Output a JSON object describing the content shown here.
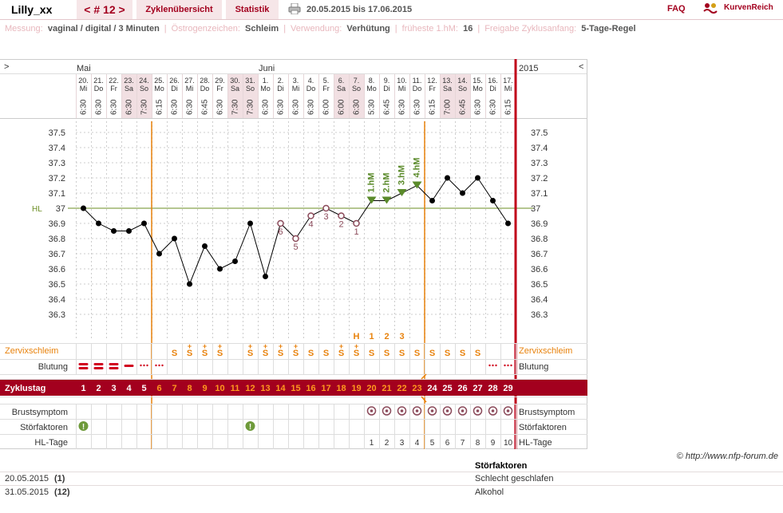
{
  "header": {
    "user": "Lilly_xx",
    "cycle_nav": "< # 12 >",
    "tabs": [
      "Zyklenübersicht",
      "Statistik"
    ],
    "date_range": "20.05.2015 bis 17.06.2015",
    "faq": "FAQ",
    "brand": "KurvenReich",
    "printer_icon": "printer-icon",
    "brand_icon": "kurvenreich-logo-icon"
  },
  "settings": [
    {
      "key": "Messung:",
      "value": "vaginal / digital / 3 Minuten"
    },
    {
      "key": "Östrogenzeichen:",
      "value": "Schleim"
    },
    {
      "key": "Verwendung:",
      "value": "Verhütung"
    },
    {
      "key": "früheste 1.hM:",
      "value": "16"
    },
    {
      "key": "Freigabe Zyklusanfang:",
      "value": "5-Tage-Regel"
    }
  ],
  "chart_data": {
    "type": "line",
    "nav_left": ">",
    "nav_right": "<",
    "year": "2015",
    "months": [
      {
        "label": "Mai",
        "col": 0
      },
      {
        "label": "Juni",
        "col": 12
      }
    ],
    "days": [
      "20.",
      "21.",
      "22.",
      "23.",
      "24.",
      "25.",
      "26.",
      "27.",
      "28.",
      "29.",
      "30.",
      "31.",
      "1.",
      "2.",
      "3.",
      "4.",
      "5.",
      "6.",
      "7.",
      "8.",
      "9.",
      "10.",
      "11.",
      "12.",
      "13.",
      "14.",
      "15.",
      "16.",
      "17."
    ],
    "weekdays": [
      "Mi",
      "Do",
      "Fr",
      "Sa",
      "So",
      "Mo",
      "Di",
      "Mi",
      "Do",
      "Fr",
      "Sa",
      "So",
      "Mo",
      "Di",
      "Mi",
      "Do",
      "Fr",
      "Sa",
      "So",
      "Mo",
      "Di",
      "Mi",
      "Do",
      "Fr",
      "Sa",
      "So",
      "Mo",
      "Di",
      "Mi"
    ],
    "weekend": [
      false,
      false,
      false,
      true,
      true,
      false,
      false,
      false,
      false,
      false,
      true,
      true,
      false,
      false,
      false,
      false,
      false,
      true,
      true,
      false,
      false,
      false,
      false,
      false,
      true,
      true,
      false,
      false,
      false
    ],
    "times": [
      "6:30",
      "6:30",
      "6:30",
      "6:30",
      "7:30",
      "6:15",
      "6:30",
      "6:30",
      "6:45",
      "6:30",
      "7:30",
      "7:30",
      "6:30",
      "6:30",
      "6:30",
      "6:30",
      "6:00",
      "6:00",
      "6:30",
      "5:30",
      "6:45",
      "6:30",
      "6:30",
      "6:15",
      "7:00",
      "6:45",
      "6:30",
      "6:30",
      "6:15"
    ],
    "ylim": [
      36.3,
      37.5
    ],
    "yticks": [
      "37.5",
      "37.4",
      "37.3",
      "37.2",
      "37.1",
      "37",
      "36.9",
      "36.8",
      "36.7",
      "36.6",
      "36.5",
      "36.4",
      "36.3"
    ],
    "hl_label": "HL",
    "coverline": 37.0,
    "temperatures": [
      37.0,
      36.9,
      36.85,
      36.85,
      36.9,
      36.7,
      36.8,
      36.5,
      36.75,
      36.6,
      36.65,
      36.9,
      36.55,
      36.9,
      36.8,
      36.95,
      37.0,
      36.95,
      36.9,
      37.05,
      37.05,
      37.1,
      37.15,
      37.05,
      37.2,
      37.1,
      37.2,
      37.05,
      36.9
    ],
    "lower_six_labels": [
      {
        "day": 13,
        "label": "6"
      },
      {
        "day": 14,
        "label": "5"
      },
      {
        "day": 15,
        "label": "4"
      },
      {
        "day": 16,
        "label": "3"
      },
      {
        "day": 17,
        "label": "2"
      },
      {
        "day": 18,
        "label": "1"
      }
    ],
    "higher_labels": [
      {
        "day": 19,
        "label": "1.hM"
      },
      {
        "day": 20,
        "label": "2.hM"
      },
      {
        "day": 21,
        "label": "3.hM"
      },
      {
        "day": 22,
        "label": "4.hM"
      }
    ],
    "vertical_markers": [
      4.5,
      22.5
    ],
    "mucus_peak_labels": [
      {
        "day": 18,
        "label": "H"
      },
      {
        "day": 19,
        "label": "1"
      },
      {
        "day": 20,
        "label": "2"
      },
      {
        "day": 21,
        "label": "3"
      }
    ],
    "mucus_label": "Zervixschleim",
    "mucus": [
      "",
      "",
      "",
      "",
      "",
      "",
      "S",
      "S+",
      "S+",
      "S+",
      "",
      "S+",
      "S+",
      "S+",
      "S+",
      "S",
      "S",
      "S+",
      "S+",
      "S",
      "S",
      "S",
      "S",
      "S",
      "S",
      "S",
      "S",
      "",
      ""
    ],
    "bleeding_label": "Blutung",
    "bleeding": [
      "heavy",
      "heavy",
      "heavy",
      "medium",
      "spot",
      "spot",
      "",
      "",
      "",
      "",
      "",
      "",
      "",
      "",
      "",
      "",
      "",
      "",
      "",
      "",
      "",
      "",
      "",
      "",
      "",
      "",
      "",
      "spot",
      "spot"
    ],
    "cycle_day_label": "Zyklustag",
    "cycle_days": [
      "1",
      "2",
      "3",
      "4",
      "5",
      "6",
      "7",
      "8",
      "9",
      "10",
      "11",
      "12",
      "13",
      "14",
      "15",
      "16",
      "17",
      "18",
      "19",
      "20",
      "21",
      "22",
      "23",
      "24",
      "25",
      "26",
      "27",
      "28",
      "29"
    ],
    "breast_label": "Brustsymptom",
    "breast": [
      false,
      false,
      false,
      false,
      false,
      false,
      false,
      false,
      false,
      false,
      false,
      false,
      false,
      false,
      false,
      false,
      false,
      false,
      false,
      true,
      true,
      true,
      true,
      true,
      true,
      true,
      true,
      true,
      true
    ],
    "disturb_label": "Störfaktoren",
    "disturb": [
      0,
      11
    ],
    "disturb_icon": "exclamation-icon",
    "hl_days_label": "HL-Tage",
    "hl_days": [
      "",
      "",
      "",
      "",
      "",
      "",
      "",
      "",
      "",
      "",
      "",
      "",
      "",
      "",
      "",
      "",
      "",
      "",
      "",
      "1",
      "2",
      "3",
      "4",
      "5",
      "6",
      "7",
      "8",
      "9",
      "10"
    ],
    "colors": {
      "line": "#000000",
      "coverline": "#6b8e23",
      "accent": "#a3001e",
      "mucus": "#e8820c",
      "weekend": "#f1dfe2",
      "hm": "#5a8a2a",
      "lowsix": "#8b4a5a",
      "disturb": "#6e9a3a"
    }
  },
  "footer": {
    "copyright": "© http://www.nfp-forum.de",
    "notes_header": "Störfaktoren",
    "notes": [
      {
        "date": "20.05.2015",
        "day": "(1)",
        "text": "Schlecht geschlafen"
      },
      {
        "date": "31.05.2015",
        "day": "(12)",
        "text": "Alkohol"
      }
    ]
  }
}
